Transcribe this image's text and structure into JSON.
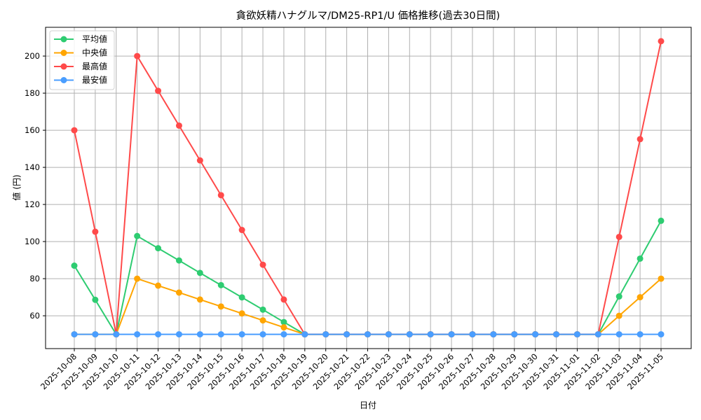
{
  "chart_data": {
    "type": "line",
    "title": "貪欲妖精ハナグルマ/DM25-RP1/U 価格推移(過去30日間)",
    "xlabel": "日付",
    "ylabel": "値 (円)",
    "ylim": [
      42.3,
      215.5
    ],
    "yticks": [
      60,
      80,
      100,
      120,
      140,
      160,
      180,
      200
    ],
    "grid": true,
    "legend_position": "upper left",
    "x": [
      "2025-10-08",
      "2025-10-09",
      "2025-10-10",
      "2025-10-11",
      "2025-10-12",
      "2025-10-13",
      "2025-10-14",
      "2025-10-15",
      "2025-10-16",
      "2025-10-17",
      "2025-10-18",
      "2025-10-19",
      "2025-10-20",
      "2025-10-21",
      "2025-10-22",
      "2025-10-23",
      "2025-10-24",
      "2025-10-25",
      "2025-10-26",
      "2025-10-27",
      "2025-10-28",
      "2025-10-29",
      "2025-10-30",
      "2025-10-31",
      "2025-11-01",
      "2025-11-02",
      "2025-11-03",
      "2025-11-04",
      "2025-11-05"
    ],
    "series": [
      {
        "name": "平均値",
        "color": "#2ecc71",
        "values": [
          87,
          68.6,
          50,
          103,
          96.4,
          89.8,
          83.1,
          76.5,
          69.9,
          63.3,
          56.6,
          50,
          50,
          50,
          50,
          50,
          50,
          50,
          50,
          50,
          50,
          50,
          50,
          50,
          50,
          50,
          70.4,
          90.8,
          111.2
        ]
      },
      {
        "name": "中央値",
        "color": "#ffa500",
        "values": [
          50,
          50,
          50,
          80,
          76.25,
          72.5,
          68.75,
          65,
          61.25,
          57.5,
          53.75,
          50,
          50,
          50,
          50,
          50,
          50,
          50,
          50,
          50,
          50,
          50,
          50,
          50,
          50,
          50,
          60,
          70,
          80
        ]
      },
      {
        "name": "最高値",
        "color": "#ff4a4a",
        "values": [
          160,
          105.3,
          50,
          200,
          181.25,
          162.5,
          143.75,
          125,
          106.25,
          87.5,
          68.75,
          50,
          50,
          50,
          50,
          50,
          50,
          50,
          50,
          50,
          50,
          50,
          50,
          50,
          50,
          50,
          102.5,
          155.2,
          208
        ]
      },
      {
        "name": "最安値",
        "color": "#4a9eff",
        "values": [
          50,
          50,
          50,
          50,
          50,
          50,
          50,
          50,
          50,
          50,
          50,
          50,
          50,
          50,
          50,
          50,
          50,
          50,
          50,
          50,
          50,
          50,
          50,
          50,
          50,
          50,
          50,
          50,
          50
        ]
      }
    ]
  }
}
